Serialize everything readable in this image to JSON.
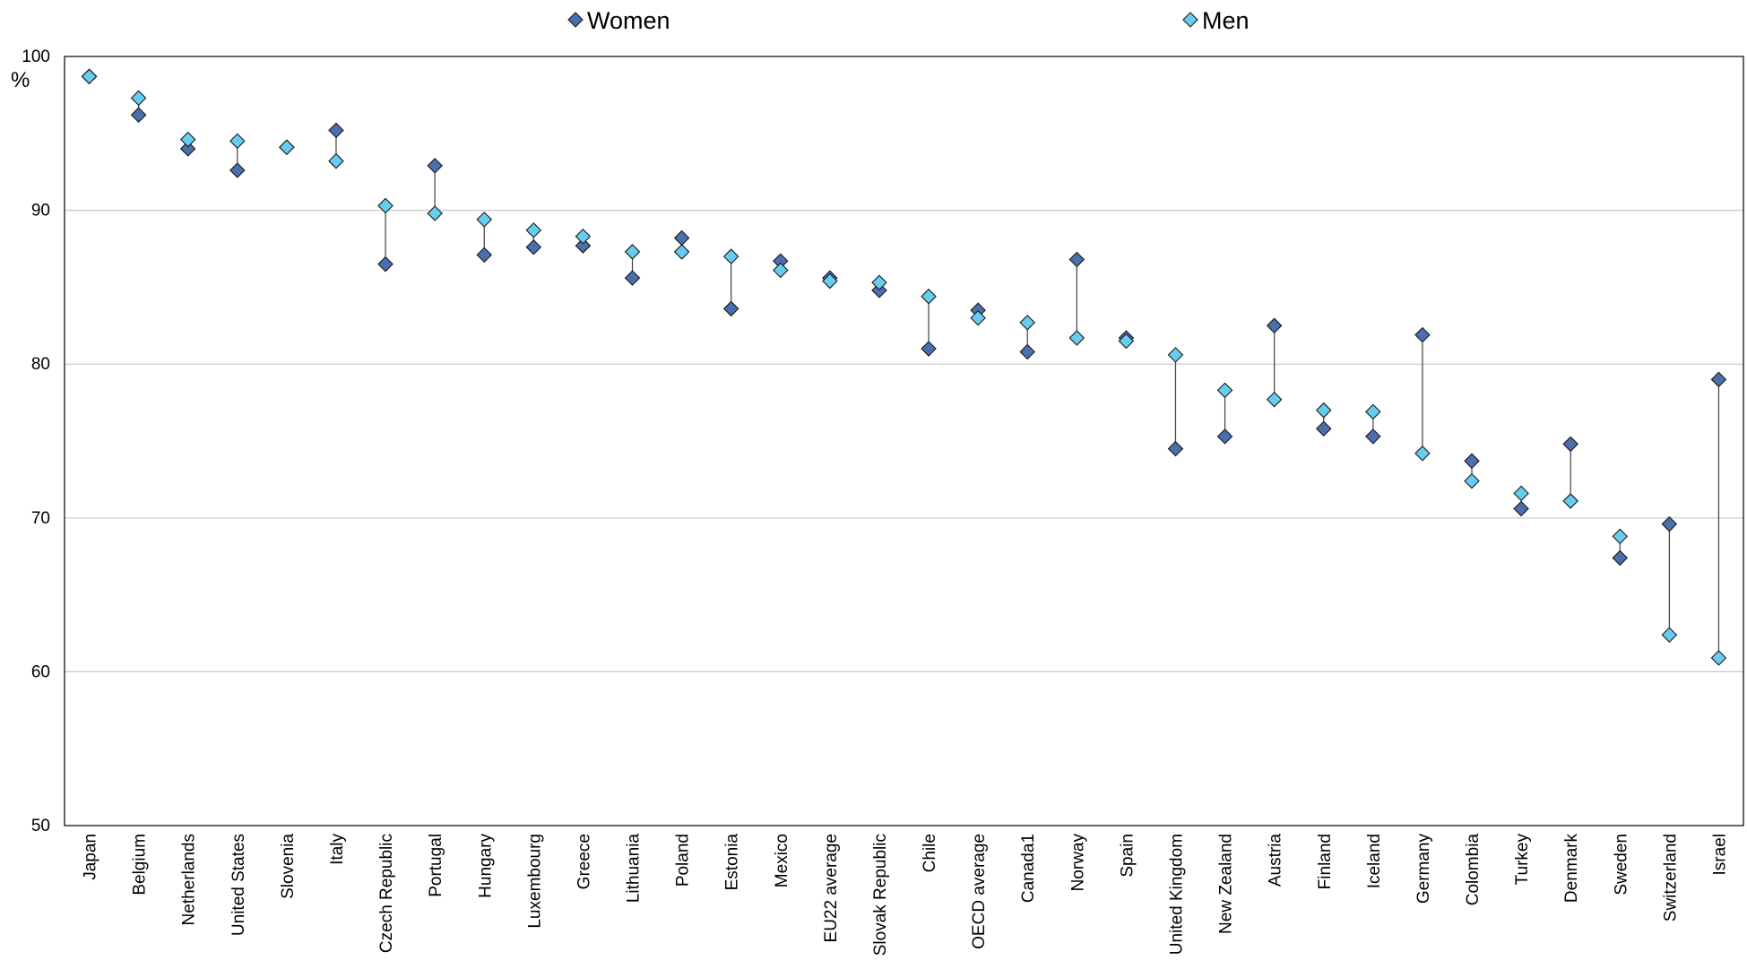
{
  "chart_data": {
    "type": "scatter",
    "title": "",
    "xlabel": "",
    "ylabel": "%",
    "ylim": [
      50,
      100
    ],
    "yticks": [
      50,
      60,
      70,
      80,
      90,
      100
    ],
    "grid": true,
    "legend_position": "top",
    "categories": [
      "Japan",
      "Belgium",
      "Netherlands",
      "United States",
      "Slovenia",
      "Italy",
      "Czech Republic",
      "Portugal",
      "Hungary",
      "Luxembourg",
      "Greece",
      "Lithuania",
      "Poland",
      "Estonia",
      "Mexico",
      "EU22 average",
      "Slovak Republic",
      "Chile",
      "OECD average",
      "Canada1",
      "Norway",
      "Spain",
      "United Kingdom",
      "New Zealand",
      "Austria",
      "Finland",
      "Iceland",
      "Germany",
      "Colombia",
      "Turkey",
      "Denmark",
      "Sweden",
      "Switzerland",
      "Israel"
    ],
    "series": [
      {
        "name": "Women",
        "color": "#4a6fad",
        "values": [
          98.7,
          96.2,
          94.0,
          92.6,
          94.1,
          95.2,
          86.5,
          92.9,
          87.1,
          87.6,
          87.7,
          85.6,
          88.2,
          83.6,
          86.7,
          85.6,
          84.8,
          81.0,
          83.5,
          80.8,
          86.8,
          81.7,
          74.5,
          75.3,
          82.5,
          75.8,
          75.3,
          81.9,
          73.7,
          70.6,
          74.8,
          67.4,
          69.6,
          79.0
        ]
      },
      {
        "name": "Men",
        "color": "#66cdf0",
        "values": [
          98.7,
          97.3,
          94.6,
          94.5,
          94.1,
          93.2,
          90.3,
          89.8,
          89.4,
          88.7,
          88.3,
          87.3,
          87.3,
          87.0,
          86.1,
          85.4,
          85.3,
          84.4,
          83.0,
          82.7,
          81.7,
          81.5,
          80.6,
          78.3,
          77.7,
          77.0,
          76.9,
          74.2,
          72.4,
          71.6,
          71.1,
          68.8,
          62.4,
          60.9
        ]
      }
    ]
  }
}
